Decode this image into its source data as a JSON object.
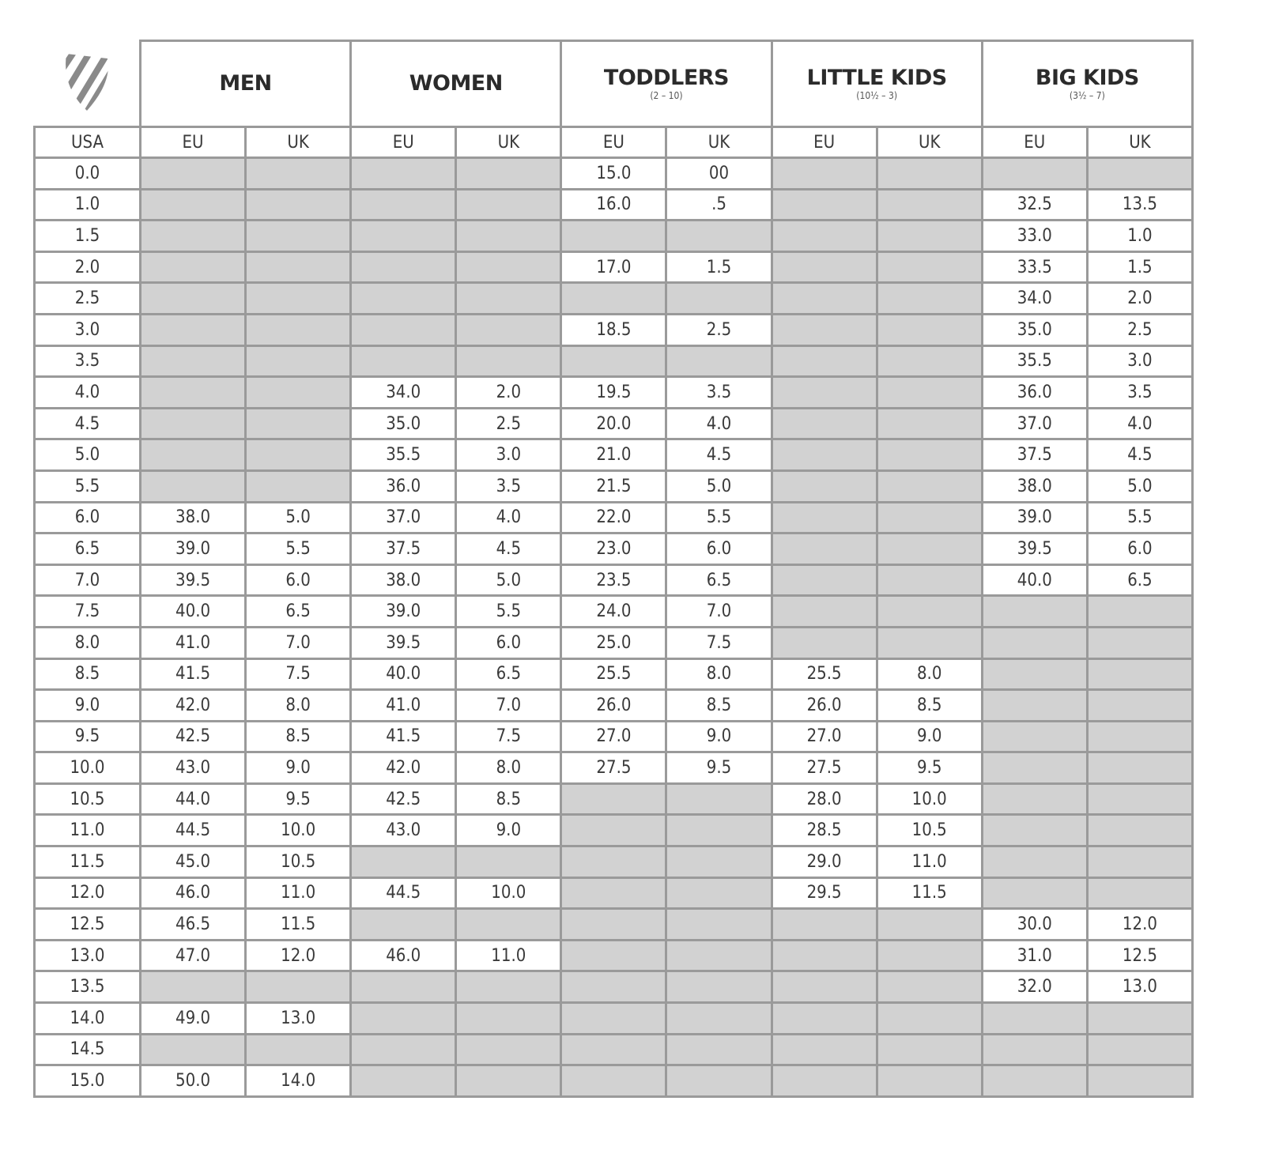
{
  "logo": {
    "icon": "shield-stripes-logo",
    "color": "#8a8a8a"
  },
  "groups": [
    {
      "title": "MEN",
      "subtitle": ""
    },
    {
      "title": "WOMEN",
      "subtitle": ""
    },
    {
      "title": "TODDLERS",
      "subtitle": "(2 – 10)"
    },
    {
      "title": "LITTLE KIDS",
      "subtitle": "(10½ – 3)"
    },
    {
      "title": "BIG KIDS",
      "subtitle": "(3½ – 7)"
    }
  ],
  "columns": [
    "USA",
    "EU",
    "UK",
    "EU",
    "UK",
    "EU",
    "UK",
    "EU",
    "UK",
    "EU",
    "UK"
  ],
  "colors": {
    "empty_cell": "#d2d2d2",
    "border": "#9a9a9a"
  },
  "rows": [
    [
      "0.0",
      null,
      null,
      null,
      null,
      "15.0",
      "00",
      null,
      null,
      null,
      null
    ],
    [
      "1.0",
      null,
      null,
      null,
      null,
      "16.0",
      ".5",
      null,
      null,
      "32.5",
      "13.5"
    ],
    [
      "1.5",
      null,
      null,
      null,
      null,
      null,
      null,
      null,
      null,
      "33.0",
      "1.0"
    ],
    [
      "2.0",
      null,
      null,
      null,
      null,
      "17.0",
      "1.5",
      null,
      null,
      "33.5",
      "1.5"
    ],
    [
      "2.5",
      null,
      null,
      null,
      null,
      null,
      null,
      null,
      null,
      "34.0",
      "2.0"
    ],
    [
      "3.0",
      null,
      null,
      null,
      null,
      "18.5",
      "2.5",
      null,
      null,
      "35.0",
      "2.5"
    ],
    [
      "3.5",
      null,
      null,
      null,
      null,
      null,
      null,
      null,
      null,
      "35.5",
      "3.0"
    ],
    [
      "4.0",
      null,
      null,
      "34.0",
      "2.0",
      "19.5",
      "3.5",
      null,
      null,
      "36.0",
      "3.5"
    ],
    [
      "4.5",
      null,
      null,
      "35.0",
      "2.5",
      "20.0",
      "4.0",
      null,
      null,
      "37.0",
      "4.0"
    ],
    [
      "5.0",
      null,
      null,
      "35.5",
      "3.0",
      "21.0",
      "4.5",
      null,
      null,
      "37.5",
      "4.5"
    ],
    [
      "5.5",
      null,
      null,
      "36.0",
      "3.5",
      "21.5",
      "5.0",
      null,
      null,
      "38.0",
      "5.0"
    ],
    [
      "6.0",
      "38.0",
      "5.0",
      "37.0",
      "4.0",
      "22.0",
      "5.5",
      null,
      null,
      "39.0",
      "5.5"
    ],
    [
      "6.5",
      "39.0",
      "5.5",
      "37.5",
      "4.5",
      "23.0",
      "6.0",
      null,
      null,
      "39.5",
      "6.0"
    ],
    [
      "7.0",
      "39.5",
      "6.0",
      "38.0",
      "5.0",
      "23.5",
      "6.5",
      null,
      null,
      "40.0",
      "6.5"
    ],
    [
      "7.5",
      "40.0",
      "6.5",
      "39.0",
      "5.5",
      "24.0",
      "7.0",
      null,
      null,
      null,
      null
    ],
    [
      "8.0",
      "41.0",
      "7.0",
      "39.5",
      "6.0",
      "25.0",
      "7.5",
      null,
      null,
      null,
      null
    ],
    [
      "8.5",
      "41.5",
      "7.5",
      "40.0",
      "6.5",
      "25.5",
      "8.0",
      "25.5",
      "8.0",
      null,
      null
    ],
    [
      "9.0",
      "42.0",
      "8.0",
      "41.0",
      "7.0",
      "26.0",
      "8.5",
      "26.0",
      "8.5",
      null,
      null
    ],
    [
      "9.5",
      "42.5",
      "8.5",
      "41.5",
      "7.5",
      "27.0",
      "9.0",
      "27.0",
      "9.0",
      null,
      null
    ],
    [
      "10.0",
      "43.0",
      "9.0",
      "42.0",
      "8.0",
      "27.5",
      "9.5",
      "27.5",
      "9.5",
      null,
      null
    ],
    [
      "10.5",
      "44.0",
      "9.5",
      "42.5",
      "8.5",
      null,
      null,
      "28.0",
      "10.0",
      null,
      null
    ],
    [
      "11.0",
      "44.5",
      "10.0",
      "43.0",
      "9.0",
      null,
      null,
      "28.5",
      "10.5",
      null,
      null
    ],
    [
      "11.5",
      "45.0",
      "10.5",
      null,
      null,
      null,
      null,
      "29.0",
      "11.0",
      null,
      null
    ],
    [
      "12.0",
      "46.0",
      "11.0",
      "44.5",
      "10.0",
      null,
      null,
      "29.5",
      "11.5",
      null,
      null
    ],
    [
      "12.5",
      "46.5",
      "11.5",
      null,
      null,
      null,
      null,
      null,
      null,
      "30.0",
      "12.0"
    ],
    [
      "13.0",
      "47.0",
      "12.0",
      "46.0",
      "11.0",
      null,
      null,
      null,
      null,
      "31.0",
      "12.5"
    ],
    [
      "13.5",
      null,
      null,
      null,
      null,
      null,
      null,
      null,
      null,
      "32.0",
      "13.0"
    ],
    [
      "14.0",
      "49.0",
      "13.0",
      null,
      null,
      null,
      null,
      null,
      null,
      null,
      null
    ],
    [
      "14.5",
      null,
      null,
      null,
      null,
      null,
      null,
      null,
      null,
      null,
      null
    ],
    [
      "15.0",
      "50.0",
      "14.0",
      null,
      null,
      null,
      null,
      null,
      null,
      null,
      null
    ]
  ]
}
